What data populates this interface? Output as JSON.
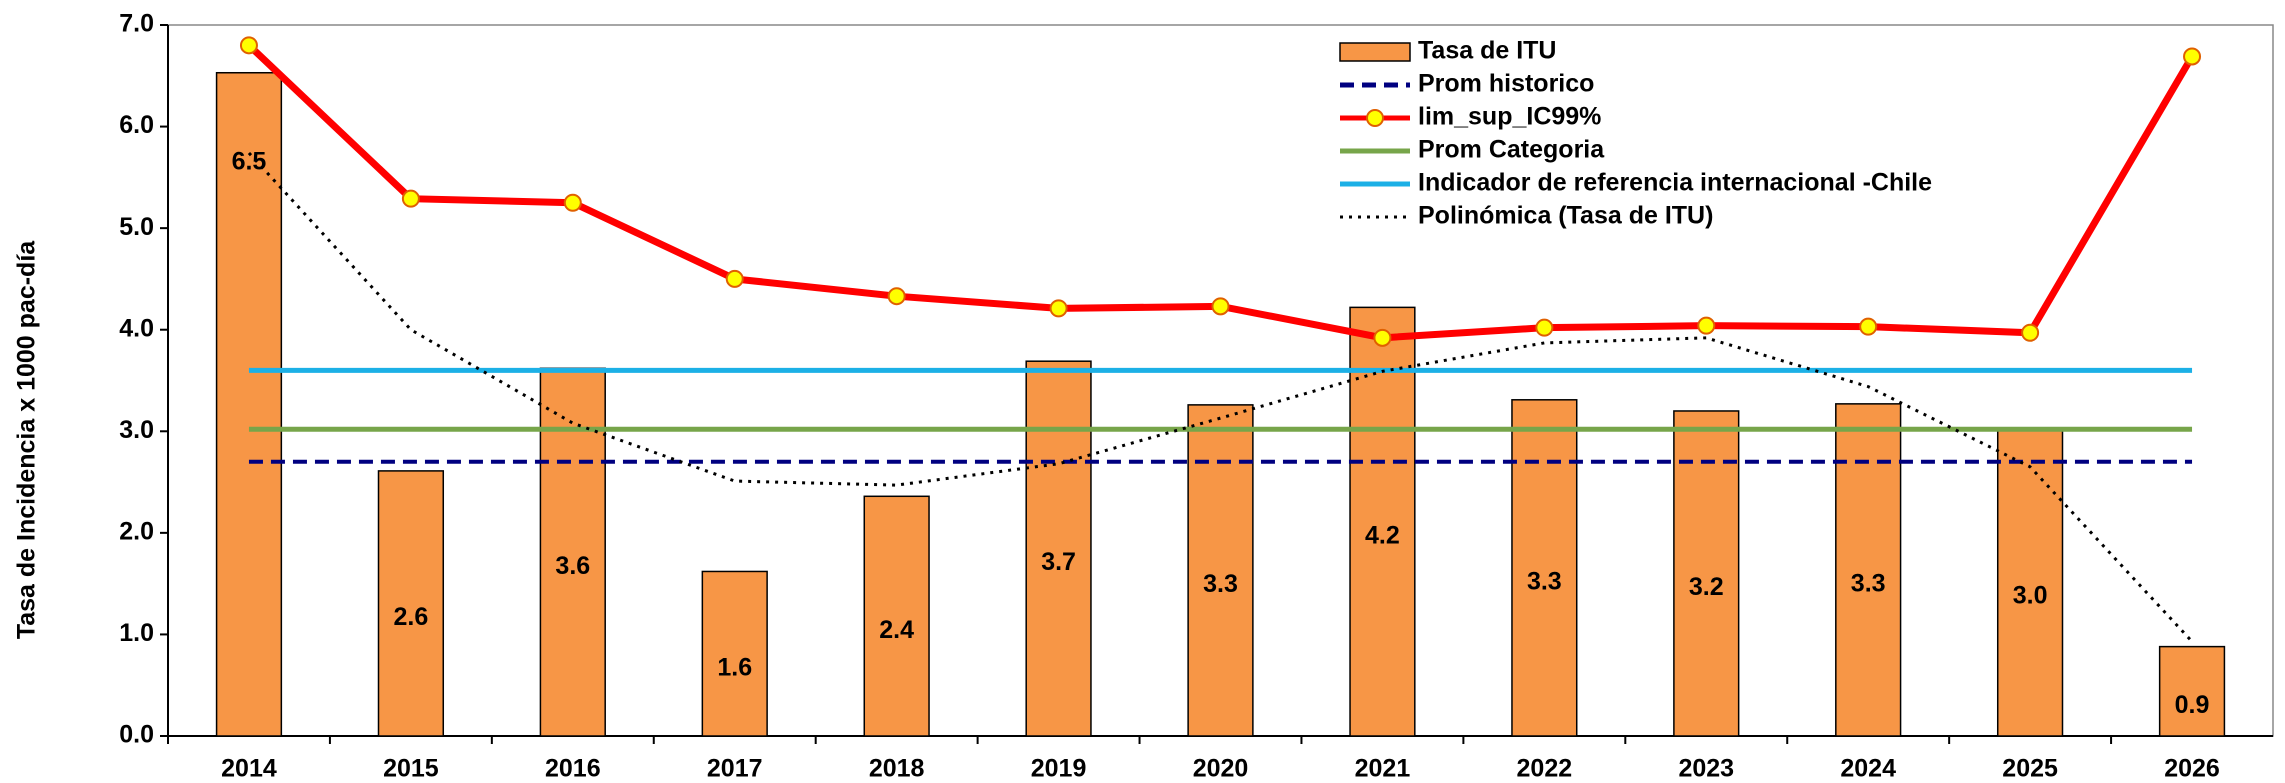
{
  "chart_data": {
    "type": "combo",
    "y_label": "Tasa de Incidencia x 1000 pac-día",
    "categories": [
      "2014",
      "2015",
      "2016",
      "2017",
      "2018",
      "2019",
      "2020",
      "2021",
      "2022",
      "2023",
      "2024",
      "2025",
      "2026"
    ],
    "ylim": [
      0,
      7
    ],
    "yticks": [
      {
        "value": 0,
        "label": "0.0"
      },
      {
        "value": 1,
        "label": "1.0"
      },
      {
        "value": 2,
        "label": "2.0"
      },
      {
        "value": 3,
        "label": "3.0"
      },
      {
        "value": 4,
        "label": "4.0"
      },
      {
        "value": 5,
        "label": "5.0"
      },
      {
        "value": 6,
        "label": "6.0"
      },
      {
        "value": 7,
        "label": "7.0"
      }
    ],
    "legend": "top-center",
    "series": [
      {
        "name": "Tasa de ITU",
        "kind": "bar",
        "color": "#f79646",
        "values": [
          6.53,
          2.61,
          3.62,
          1.62,
          2.36,
          3.69,
          3.26,
          4.22,
          3.31,
          3.2,
          3.27,
          3.03,
          0.88
        ],
        "value_labels": [
          "6.5",
          "2.6",
          "3.6",
          "1.6",
          "2.4",
          "3.7",
          "3.3",
          "4.2",
          "3.3",
          "3.2",
          "3.3",
          "3.0",
          "0.9"
        ]
      },
      {
        "name": "Prom historico",
        "kind": "dashed",
        "color": "#000080",
        "values": [
          2.7,
          2.7,
          2.7,
          2.7,
          2.7,
          2.7,
          2.7,
          2.7,
          2.7,
          2.7,
          2.7,
          2.7,
          2.7
        ]
      },
      {
        "name": "lim_sup_IC99%",
        "kind": "marker-line",
        "color": "#ff0000",
        "marker_color": "#ffff00",
        "values": [
          6.8,
          5.29,
          5.25,
          4.5,
          4.33,
          4.21,
          4.23,
          3.92,
          4.02,
          4.04,
          4.03,
          3.97,
          6.69
        ]
      },
      {
        "name": "Prom Categoria",
        "kind": "line",
        "color": "#77a54a",
        "values": [
          3.02,
          3.02,
          3.02,
          3.02,
          3.02,
          3.02,
          3.02,
          3.02,
          3.02,
          3.02,
          3.02,
          3.02,
          3.02
        ]
      },
      {
        "name": "Indicador de referencia internacional -Chile",
        "kind": "line",
        "color": "#1cb0e6",
        "values": [
          3.6,
          3.6,
          3.6,
          3.6,
          3.6,
          3.6,
          3.6,
          3.6,
          3.6,
          3.6,
          3.6,
          3.6,
          3.6
        ]
      },
      {
        "name": "Polinómica (Tasa de ITU)",
        "kind": "dotted",
        "color": "#000000",
        "values": [
          5.74,
          4.0,
          3.08,
          2.51,
          2.47,
          2.68,
          3.13,
          3.59,
          3.87,
          3.92,
          3.44,
          2.65,
          0.93
        ]
      }
    ]
  }
}
